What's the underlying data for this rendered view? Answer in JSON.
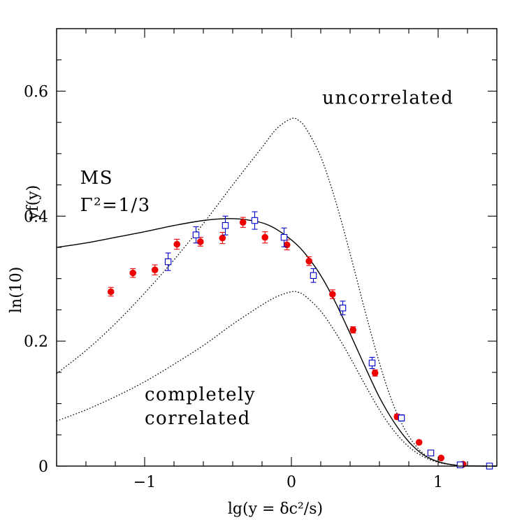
{
  "chart_data": {
    "type": "scatter",
    "xlabel": "lg(y = δc²/s)",
    "ylabel_top": "yf(y)",
    "ylabel_bottom": "ln(10)",
    "xlim": [
      -1.6,
      1.4
    ],
    "ylim": [
      0,
      0.7
    ],
    "x_ticks": [
      {
        "value": -1,
        "label": "−1"
      },
      {
        "value": 0,
        "label": "0"
      },
      {
        "value": 1,
        "label": "1"
      }
    ],
    "y_ticks": [
      {
        "value": 0,
        "label": "0"
      },
      {
        "value": 0.2,
        "label": "0.2"
      },
      {
        "value": 0.4,
        "label": "0.4"
      },
      {
        "value": 0.6,
        "label": "0.6"
      }
    ],
    "annotations": [
      {
        "id": "uncorrelated",
        "text": "uncorrelated",
        "x": 0.21,
        "y": 0.58
      },
      {
        "id": "ms",
        "text": "MS",
        "x": -1.44,
        "y": 0.452
      },
      {
        "id": "gamma",
        "text": "Γ²=1/3",
        "x": -1.44,
        "y": 0.408
      },
      {
        "id": "completely",
        "text": "completely",
        "x": -1.0,
        "y": 0.105
      },
      {
        "id": "correlated",
        "text": "correlated",
        "x": -1.0,
        "y": 0.067
      }
    ],
    "series": [
      {
        "name": "MS Γ²=1/3",
        "style": "solid",
        "color": "#000000",
        "x": [
          -1.6,
          -1.4,
          -1.2,
          -1.0,
          -0.8,
          -0.6,
          -0.45,
          -0.3,
          -0.15,
          0.0,
          0.1,
          0.2,
          0.3,
          0.4,
          0.5,
          0.6,
          0.7,
          0.8,
          0.9,
          1.0,
          1.1,
          1.2,
          1.3,
          1.4
        ],
        "y": [
          0.35,
          0.357,
          0.366,
          0.375,
          0.385,
          0.393,
          0.396,
          0.394,
          0.385,
          0.362,
          0.338,
          0.305,
          0.262,
          0.212,
          0.16,
          0.11,
          0.07,
          0.039,
          0.018,
          0.007,
          0.002,
          0.0005,
          0.0001,
          0.0
        ]
      },
      {
        "name": "uncorrelated",
        "style": "dotted",
        "color": "#000000",
        "x": [
          -1.6,
          -1.4,
          -1.2,
          -1.0,
          -0.8,
          -0.6,
          -0.4,
          -0.2,
          -0.1,
          0.0,
          0.05,
          0.1,
          0.2,
          0.3,
          0.4,
          0.5,
          0.6,
          0.7,
          0.8,
          0.9,
          1.0,
          1.1,
          1.2,
          1.3,
          1.4
        ],
        "y": [
          0.148,
          0.185,
          0.228,
          0.277,
          0.33,
          0.388,
          0.45,
          0.51,
          0.54,
          0.556,
          0.553,
          0.54,
          0.495,
          0.425,
          0.34,
          0.25,
          0.165,
          0.095,
          0.048,
          0.02,
          0.007,
          0.002,
          0.0005,
          0.0001,
          0.0
        ]
      },
      {
        "name": "completely correlated",
        "style": "dotted",
        "color": "#000000",
        "x": [
          -1.6,
          -1.4,
          -1.2,
          -1.0,
          -0.8,
          -0.6,
          -0.4,
          -0.2,
          -0.1,
          0.0,
          0.05,
          0.1,
          0.2,
          0.3,
          0.4,
          0.5,
          0.6,
          0.7,
          0.8,
          0.9,
          1.0,
          1.1,
          1.2,
          1.3,
          1.4
        ],
        "y": [
          0.072,
          0.09,
          0.111,
          0.135,
          0.163,
          0.193,
          0.227,
          0.258,
          0.271,
          0.279,
          0.278,
          0.271,
          0.248,
          0.214,
          0.174,
          0.131,
          0.09,
          0.056,
          0.031,
          0.015,
          0.006,
          0.002,
          0.0005,
          0.0001,
          0.0
        ]
      },
      {
        "name": "filled circles",
        "style": "markers",
        "marker": "circle",
        "color": "#ee0000",
        "x": [
          -1.23,
          -1.08,
          -0.93,
          -0.78,
          -0.62,
          -0.47,
          -0.33,
          -0.18,
          -0.03,
          0.12,
          0.28,
          0.42,
          0.57,
          0.72,
          0.87,
          1.02,
          1.17
        ],
        "y": [
          0.279,
          0.309,
          0.314,
          0.355,
          0.359,
          0.365,
          0.39,
          0.366,
          0.354,
          0.328,
          0.275,
          0.218,
          0.149,
          0.079,
          0.038,
          0.013,
          0.003
        ],
        "err": [
          0.007,
          0.007,
          0.008,
          0.008,
          0.007,
          0.009,
          0.008,
          0.009,
          0.008,
          0.007,
          0.007,
          0.005,
          0.005,
          0.004,
          0.002,
          0.002,
          0.001
        ]
      },
      {
        "name": "open squares",
        "style": "markers",
        "marker": "square",
        "color": "#0000cc",
        "x": [
          -0.84,
          -0.65,
          -0.45,
          -0.25,
          -0.05,
          0.15,
          0.35,
          0.55,
          0.75,
          0.95,
          1.15,
          1.35
        ],
        "y": [
          0.327,
          0.37,
          0.385,
          0.393,
          0.366,
          0.305,
          0.253,
          0.165,
          0.077,
          0.021,
          0.002,
          0.0
        ],
        "err": [
          0.014,
          0.013,
          0.015,
          0.014,
          0.015,
          0.011,
          0.011,
          0.009,
          0.005,
          0.003,
          0.001,
          0.0
        ]
      }
    ]
  }
}
